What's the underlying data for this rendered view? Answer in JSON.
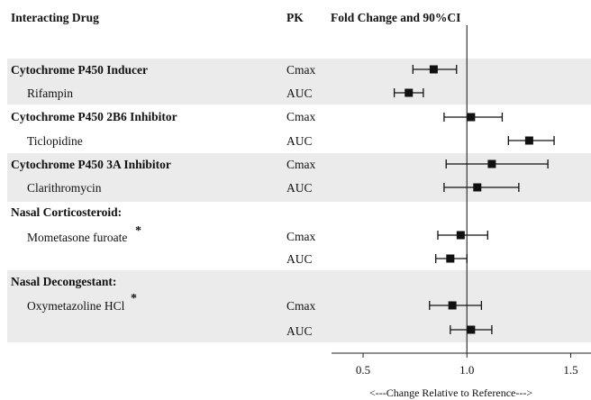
{
  "headers": {
    "drug": "Interacting Drug",
    "pk": "PK",
    "fold": "Fold Change and 90%CI"
  },
  "groups": [
    {
      "title": "Cytochrome P450 Inducer",
      "shaded": true
    },
    {
      "title": "Cytochrome P450 2B6 Inhibitor",
      "shaded": false
    },
    {
      "title": "Cytochrome P450 3A Inhibitor",
      "shaded": true
    },
    {
      "title": "Nasal Corticosteroid:",
      "shaded": false
    },
    {
      "title": "Nasal Decongestant:",
      "shaded": true
    }
  ],
  "drugs": [
    {
      "name": "Rifampin",
      "star": ""
    },
    {
      "name": "Ticlopidine",
      "star": ""
    },
    {
      "name": "Clarithromycin",
      "star": ""
    },
    {
      "name": "Mometasone furoate",
      "star": "*"
    },
    {
      "name": "Oxymetazoline HCl",
      "star": "*"
    }
  ],
  "pk_labels": [
    "Cmax",
    "AUC",
    "Cmax",
    "AUC",
    "Cmax",
    "AUC",
    "Cmax",
    "AUC",
    "Cmax",
    "AUC"
  ],
  "chart_data": {
    "type": "forest",
    "title": "Fold Change and 90%CI",
    "xlabel": "<---Change Relative to Reference--->",
    "xlim": [
      0.4,
      1.55
    ],
    "xticks": [
      0.5,
      1.0,
      1.5
    ],
    "xtick_labels": [
      "0.5",
      "1.0",
      "1.5"
    ],
    "reference_line": 1.0,
    "grid": false,
    "rows": [
      {
        "drug": "Rifampin",
        "pk": "Cmax",
        "estimate": 0.84,
        "lower": 0.74,
        "upper": 0.95
      },
      {
        "drug": "Rifampin",
        "pk": "AUC",
        "estimate": 0.72,
        "lower": 0.65,
        "upper": 0.79
      },
      {
        "drug": "Ticlopidine",
        "pk": "Cmax",
        "estimate": 1.02,
        "lower": 0.89,
        "upper": 1.17
      },
      {
        "drug": "Ticlopidine",
        "pk": "AUC",
        "estimate": 1.3,
        "lower": 1.2,
        "upper": 1.42
      },
      {
        "drug": "Clarithromycin",
        "pk": "Cmax",
        "estimate": 1.12,
        "lower": 0.9,
        "upper": 1.39
      },
      {
        "drug": "Clarithromycin",
        "pk": "AUC",
        "estimate": 1.05,
        "lower": 0.89,
        "upper": 1.25
      },
      {
        "drug": "Mometasone furoate",
        "pk": "Cmax",
        "estimate": 0.97,
        "lower": 0.86,
        "upper": 1.1
      },
      {
        "drug": "Mometasone furoate",
        "pk": "AUC",
        "estimate": 0.92,
        "lower": 0.85,
        "upper": 1.0
      },
      {
        "drug": "Oxymetazoline HCl",
        "pk": "Cmax",
        "estimate": 0.93,
        "lower": 0.82,
        "upper": 1.07
      },
      {
        "drug": "Oxymetazoline HCl",
        "pk": "AUC",
        "estimate": 1.02,
        "lower": 0.92,
        "upper": 1.12
      }
    ]
  }
}
